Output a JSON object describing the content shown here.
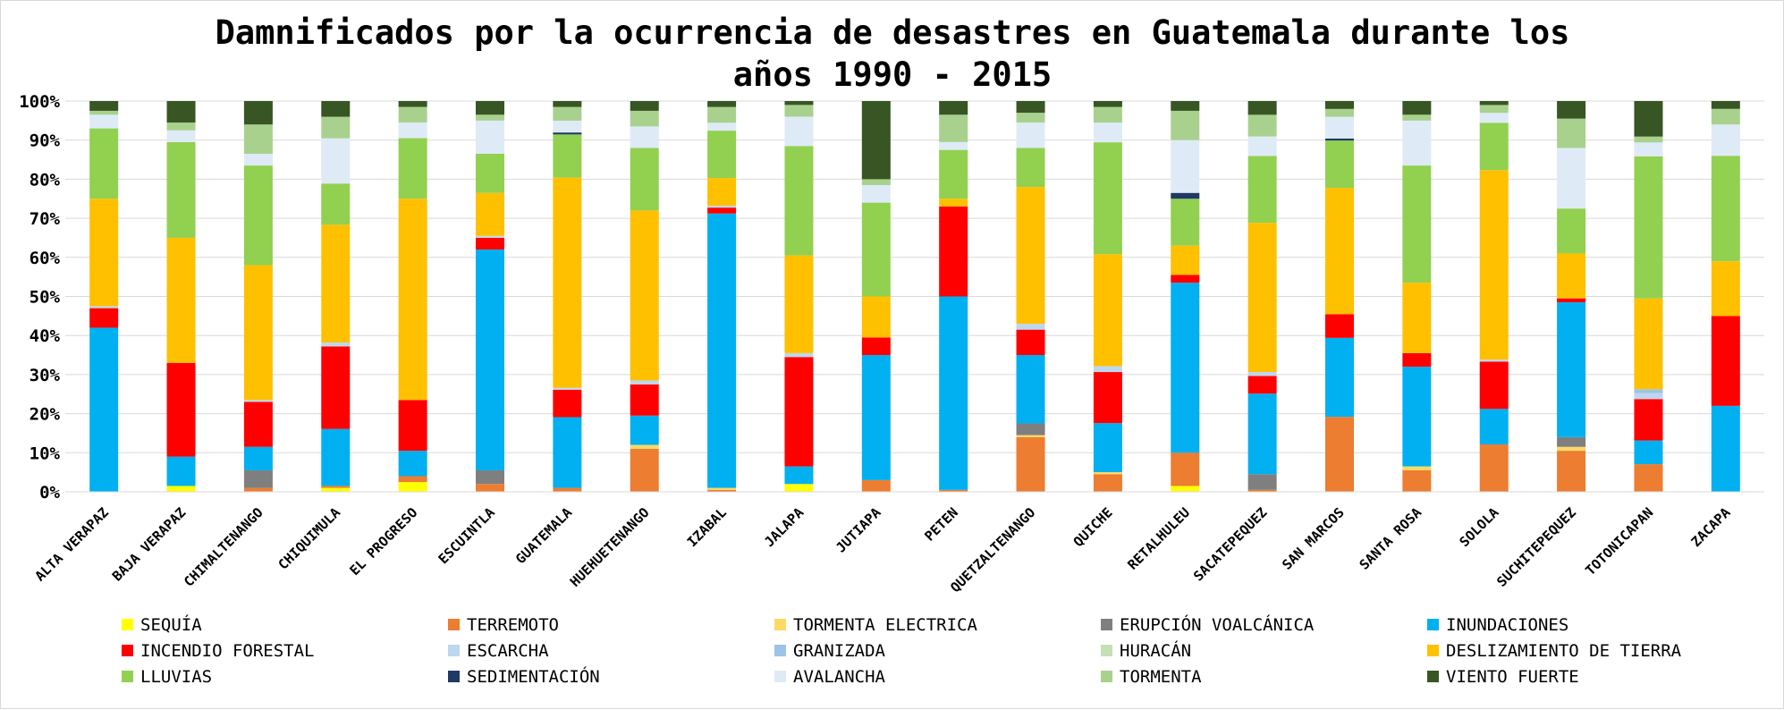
{
  "chart_data": {
    "type": "bar",
    "stacked": true,
    "percent_stacked": true,
    "title": "Damnificados por la ocurrencia de desastres en Guatemala durante los años 1990 - 2015",
    "title_lines": [
      "Damnificados por la ocurrencia de desastres en Guatemala durante los",
      "años 1990 - 2015"
    ],
    "xlabel": "",
    "ylabel": "",
    "ylim": [
      0,
      100
    ],
    "yticks": [
      "0%",
      "10%",
      "20%",
      "30%",
      "40%",
      "50%",
      "60%",
      "70%",
      "80%",
      "90%",
      "100%"
    ],
    "grid": true,
    "legend_position": "bottom",
    "categories": [
      "ALTA VERAPAZ",
      "BAJA VERAPAZ",
      "CHIMALTENANGO",
      "CHIQUIMULA",
      "EL PROGRESO",
      "ESCUINTLA",
      "GUATEMALA",
      "HUEHUETENANGO",
      "IZABAL",
      "JALAPA",
      "JUTIAPA",
      "PETEN",
      "QUETZALTENANGO",
      "QUICHE",
      "RETALHULEU",
      "SACATEPEQUEZ",
      "SAN MARCOS",
      "SANTA ROSA",
      "SOLOLA",
      "SUCHITEPEQUEZ",
      "TOTONICAPAN",
      "ZACAPA"
    ],
    "series": [
      {
        "name": "SEQUÍA",
        "color": "#ffff00",
        "values": [
          0,
          1.5,
          0,
          1,
          2.5,
          0,
          0,
          0,
          0,
          2,
          0,
          0,
          0,
          0,
          1.5,
          0,
          0,
          0,
          0,
          0,
          0,
          0
        ]
      },
      {
        "name": "TERREMOTO",
        "color": "#ed7d31",
        "values": [
          0,
          0,
          1,
          0.5,
          1.5,
          2,
          1,
          11,
          0.5,
          0,
          3,
          0.5,
          14,
          4.5,
          8.5,
          0.5,
          19,
          5.5,
          12,
          10.5,
          7,
          0
        ]
      },
      {
        "name": "TORMENTA ELECTRICA",
        "color": "#ffd966",
        "values": [
          0,
          0,
          0,
          0,
          0,
          0,
          0,
          1,
          0.5,
          0,
          0,
          0,
          0.5,
          0.5,
          0,
          0,
          0,
          1,
          0,
          1,
          0,
          0
        ]
      },
      {
        "name": "ERUPCIÓN VOALCÁNICA",
        "color": "#7f7f7f",
        "values": [
          0,
          0,
          4.5,
          0,
          0,
          3.5,
          0,
          0,
          0,
          0,
          0,
          0,
          3,
          0,
          0,
          4,
          0,
          0,
          0,
          2.5,
          0,
          0
        ]
      },
      {
        "name": "INUNDACIONES",
        "color": "#00b0f0",
        "values": [
          42,
          7.5,
          6,
          14.5,
          6.5,
          56.5,
          18,
          7.5,
          69.5,
          4.5,
          32,
          49.5,
          17.5,
          12.5,
          43.5,
          20.5,
          20,
          25.5,
          9,
          34.5,
          6,
          22
        ]
      },
      {
        "name": "INCENDIO FORESTAL",
        "color": "#ff0000",
        "values": [
          5,
          24,
          11.5,
          21,
          13,
          3,
          7,
          8,
          1.5,
          28,
          4.5,
          23,
          6.5,
          13,
          2,
          4.5,
          6,
          3.5,
          12,
          1,
          10.5,
          23
        ]
      },
      {
        "name": "ESCARCHA",
        "color": "#bdd7ee",
        "values": [
          0.5,
          0,
          0.5,
          1,
          0,
          0.5,
          0.5,
          1,
          0.5,
          1,
          0,
          0,
          1.5,
          1.5,
          0,
          1,
          0,
          0,
          0.5,
          0,
          1.5,
          0
        ]
      },
      {
        "name": "GRANIZADA",
        "color": "#9dc3e6",
        "values": [
          0,
          0,
          0,
          0,
          0,
          0,
          0,
          0,
          0,
          0,
          0,
          0,
          0,
          0,
          0,
          0,
          0,
          0,
          0,
          0,
          1,
          0
        ]
      },
      {
        "name": "HURACÁN",
        "color": "#c5e0b4",
        "values": [
          0,
          0,
          0,
          0,
          0,
          0,
          0,
          0,
          0,
          0,
          0,
          0,
          0,
          0,
          0,
          0,
          0,
          0,
          0,
          0,
          0,
          0
        ]
      },
      {
        "name": "DESLIZAMIENTO DE TIERRA",
        "color": "#ffc000",
        "values": [
          27.5,
          32,
          34.5,
          30,
          51.5,
          11,
          53.5,
          43.5,
          7,
          25,
          10.5,
          2,
          35,
          28.5,
          7.5,
          38,
          32,
          18,
          48,
          11.5,
          23,
          14
        ]
      },
      {
        "name": "LLUVIAS",
        "color": "#92d050",
        "values": [
          18,
          24.5,
          25.5,
          10.5,
          15.5,
          10,
          11,
          16,
          12,
          28,
          24,
          12.5,
          10,
          28.5,
          12,
          17,
          12,
          30,
          12,
          11.5,
          36,
          27
        ]
      },
      {
        "name": "SEDIMENTACIÓN",
        "color": "#203864",
        "values": [
          0,
          0,
          0,
          0,
          0,
          0,
          0.5,
          0,
          0,
          0,
          0,
          0,
          0,
          0,
          1.5,
          0,
          0.5,
          0,
          0,
          0,
          0,
          0
        ]
      },
      {
        "name": "AVALANCHA",
        "color": "#deebf7",
        "values": [
          3.5,
          3,
          3,
          11.5,
          4,
          8.5,
          3,
          5.5,
          2,
          7.5,
          4.5,
          2,
          6.5,
          5,
          13.5,
          5,
          5.5,
          11.5,
          2.5,
          15.5,
          3.5,
          8
        ]
      },
      {
        "name": "TORMENTA",
        "color": "#a9d18e",
        "values": [
          1,
          2,
          7.5,
          5.5,
          4,
          1.5,
          3.5,
          4,
          4,
          3,
          1.5,
          7,
          2.5,
          4,
          7.5,
          5.5,
          2,
          1.5,
          2,
          7.5,
          1.5,
          4
        ]
      },
      {
        "name": "VIENTO FUERTE",
        "color": "#375623",
        "values": [
          2.5,
          5.5,
          6,
          4,
          1.5,
          3.5,
          1.5,
          2.5,
          1.5,
          1,
          20,
          3.5,
          3,
          1.5,
          2.5,
          3.5,
          2,
          3.5,
          1,
          4.5,
          9,
          2
        ]
      }
    ]
  }
}
